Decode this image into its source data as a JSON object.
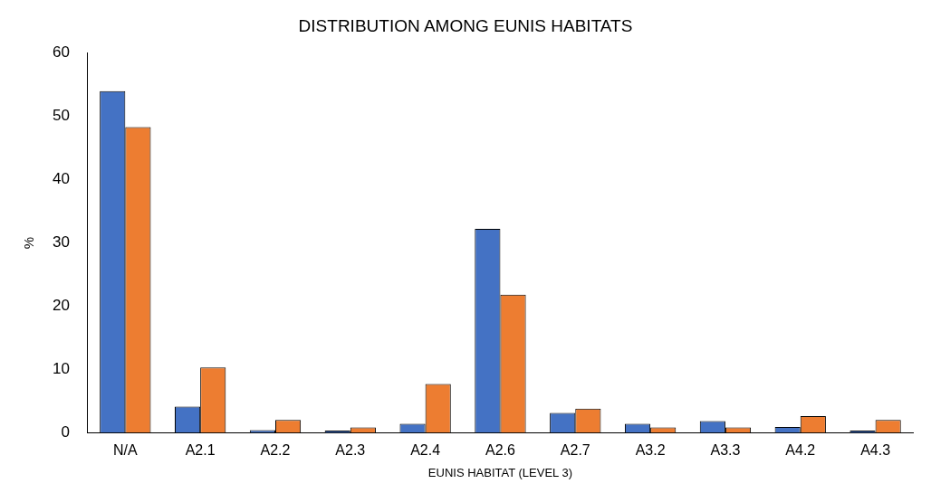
{
  "chart_data": {
    "type": "bar",
    "title": "DISTRIBUTION AMONG EUNIS HABITATS",
    "xlabel": "EUNIS HABITAT (LEVEL 3)",
    "ylabel": "%",
    "categories": [
      "N/A",
      "A2.1",
      "A2.2",
      "A2.3",
      "A2.4",
      "A2.6",
      "A2.7",
      "A3.2",
      "A3.3",
      "A4.2",
      "A4.3"
    ],
    "series": [
      {
        "color": "#4472c4",
        "values": [
          54.0,
          4.1,
          0.4,
          0.3,
          1.4,
          32.2,
          3.1,
          1.4,
          1.8,
          0.9,
          0.3
        ]
      },
      {
        "color": "#ed7d31",
        "values": [
          48.3,
          10.3,
          2.0,
          0.8,
          7.7,
          21.8,
          3.8,
          0.8,
          0.8,
          2.6,
          2.0
        ]
      }
    ],
    "ylim": [
      0,
      60
    ],
    "yticks": [
      0,
      10,
      20,
      30,
      40,
      50,
      60
    ],
    "grid": false,
    "legend": false
  }
}
